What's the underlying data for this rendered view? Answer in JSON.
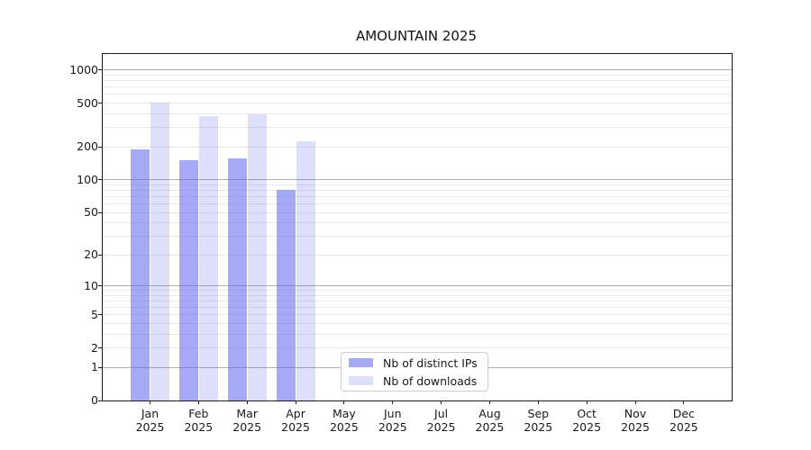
{
  "chart_data": {
    "type": "bar",
    "title": "AMOUNTAIN 2025",
    "categories": [
      "Jan 2025",
      "Feb 2025",
      "Mar 2025",
      "Apr 2025",
      "May 2025",
      "Jun 2025",
      "Jul 2025",
      "Aug 2025",
      "Sep 2025",
      "Oct 2025",
      "Nov 2025",
      "Dec 2025"
    ],
    "x_axis": {
      "months": [
        "Jan",
        "Feb",
        "Mar",
        "Apr",
        "May",
        "Jun",
        "Jul",
        "Aug",
        "Sep",
        "Oct",
        "Nov",
        "Dec"
      ],
      "year_label": "2025"
    },
    "series": [
      {
        "name": "Nb of distinct IPs",
        "color": "rgba(92,98,236,0.55)",
        "values": [
          190,
          152,
          158,
          80,
          0,
          0,
          0,
          0,
          0,
          0,
          0,
          0
        ]
      },
      {
        "name": "Nb of downloads",
        "color": "rgba(92,98,236,0.20)",
        "values": [
          510,
          385,
          395,
          225,
          0,
          0,
          0,
          0,
          0,
          0,
          0,
          0
        ]
      }
    ],
    "y_axis": {
      "scale": "log1p",
      "ticks": [
        0,
        1,
        2,
        5,
        10,
        20,
        50,
        100,
        200,
        500,
        1000
      ],
      "major_gridlines": [
        1,
        10,
        100,
        1000
      ],
      "ylim": [
        0,
        1400
      ]
    },
    "grid": {
      "shown": true,
      "major_color": "#b0b0b0",
      "minor_color": "#e9e9e9"
    },
    "legend": {
      "position": "lower center",
      "frame_color": "#cccccc"
    }
  },
  "colors": {
    "axis": "#1a1a1a",
    "background": "#ffffff",
    "bar_distinct_ips": "rgba(92,98,236,0.55)",
    "bar_downloads": "rgba(92,98,236,0.20)"
  }
}
